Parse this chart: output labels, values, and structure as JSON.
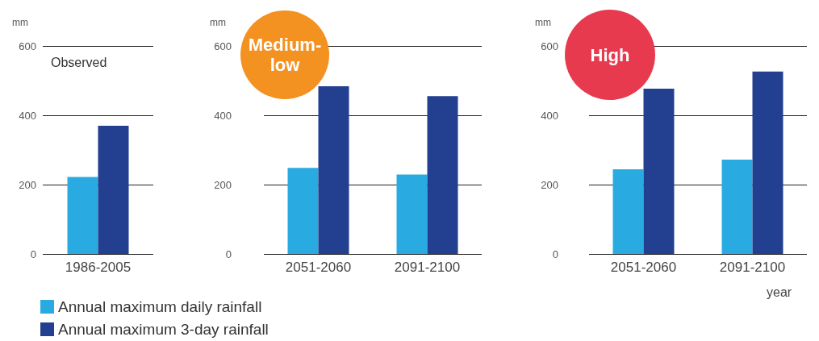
{
  "chart_data": [
    {
      "type": "bar",
      "title": "Observed",
      "ylabel": "mm",
      "categories": [
        "1986-2005"
      ],
      "ylim": [
        0,
        600
      ],
      "yticks": [
        0,
        200,
        400,
        600
      ],
      "grid": "y",
      "legend": "bottom",
      "series": [
        {
          "name": "Annual maximum daily rainfall",
          "color": "#29abe2",
          "values": [
            222
          ]
        },
        {
          "name": "Annual maximum 3-day rainfall",
          "color": "#233f8f",
          "values": [
            370
          ]
        }
      ]
    },
    {
      "type": "bar",
      "title": "Medium-low",
      "ylabel": "mm",
      "categories": [
        "2051-2060",
        "2091-2100"
      ],
      "ylim": [
        0,
        600
      ],
      "yticks": [
        0,
        200,
        400,
        600
      ],
      "grid": "y",
      "series": [
        {
          "color": "#29abe2",
          "values": [
            248,
            229
          ]
        },
        {
          "color": "#233f8f",
          "values": [
            484,
            455
          ]
        }
      ]
    },
    {
      "type": "bar",
      "title": "High",
      "ylabel": "mm",
      "xlabel": "year",
      "categories": [
        "2051-2060",
        "2091-2100"
      ],
      "ylim": [
        0,
        600
      ],
      "yticks": [
        0,
        200,
        400,
        600
      ],
      "grid": "y",
      "series": [
        {
          "color": "#29abe2",
          "values": [
            244,
            272
          ]
        },
        {
          "color": "#233f8f",
          "values": [
            477,
            526
          ]
        }
      ]
    }
  ]
}
